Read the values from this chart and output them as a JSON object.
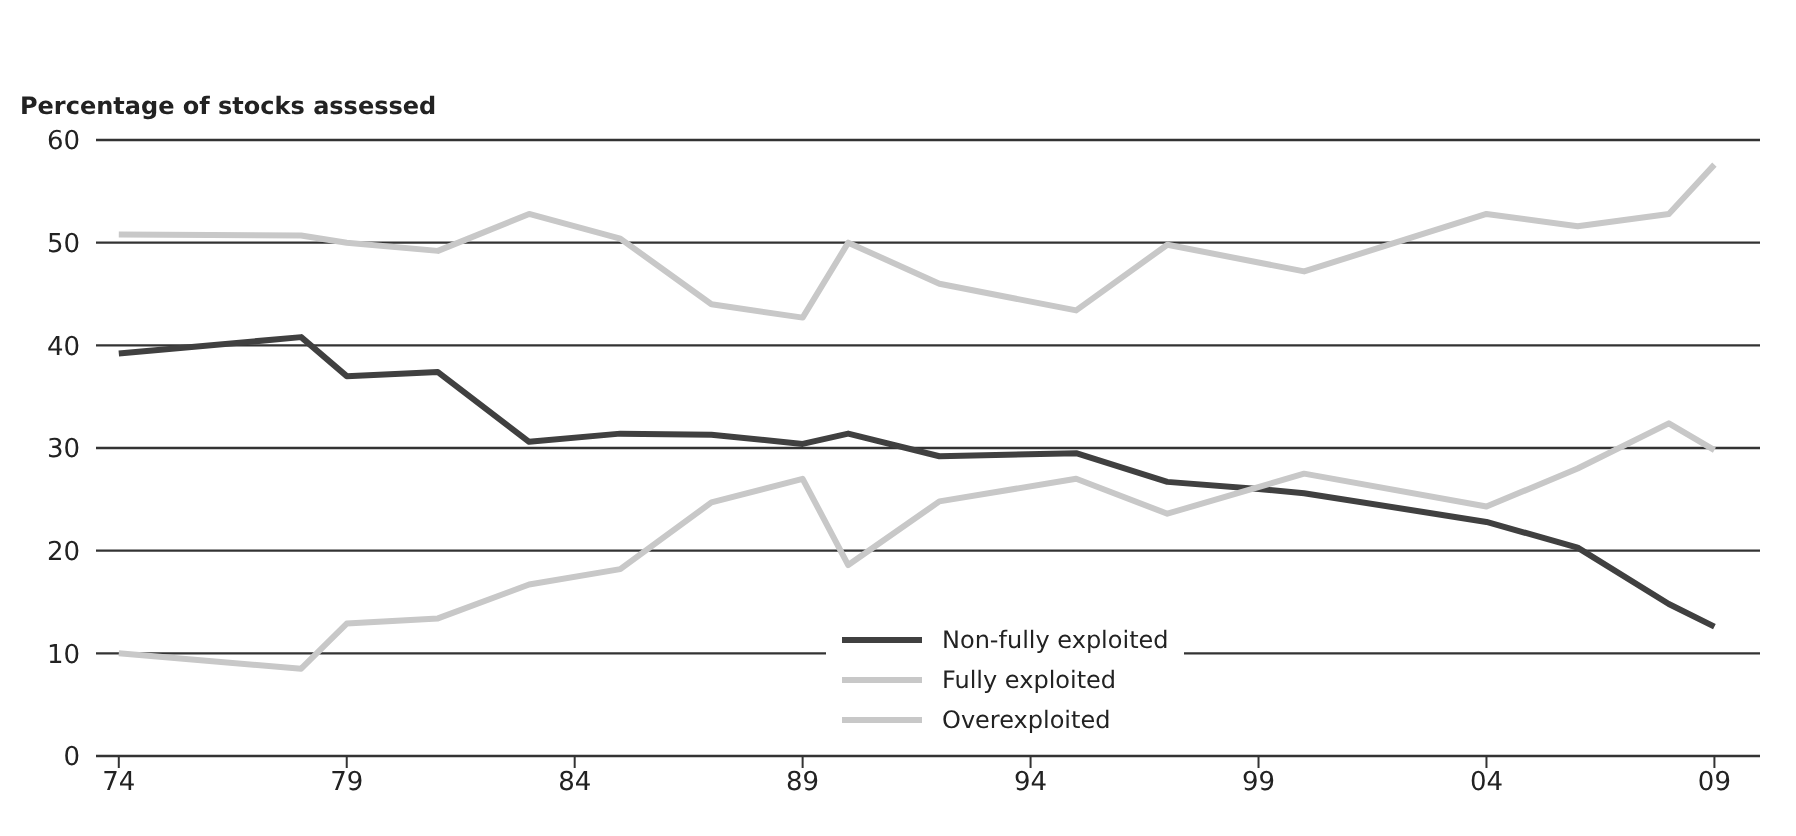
{
  "chart_data": {
    "type": "line",
    "ylabel": "Percentage of stocks assessed",
    "xlim": [
      1973.5,
      2010
    ],
    "xticks": [
      {
        "value": 1974,
        "label": "74"
      },
      {
        "value": 1979,
        "label": "79"
      },
      {
        "value": 1984,
        "label": "84"
      },
      {
        "value": 1989,
        "label": "89"
      },
      {
        "value": 1994,
        "label": "94"
      },
      {
        "value": 1999,
        "label": "99"
      },
      {
        "value": 2004,
        "label": "04"
      },
      {
        "value": 2009,
        "label": "09"
      }
    ],
    "ylim": [
      0,
      60
    ],
    "yticks": [
      0,
      10,
      20,
      30,
      40,
      50,
      60
    ],
    "grid": "y",
    "legend": "bottom",
    "marker": "none",
    "line_style": "solid",
    "series": [
      {
        "name": "Non-fully exploited",
        "color": "#404040",
        "x": [
          1974,
          1978,
          1979,
          1981,
          1983,
          1985,
          1987,
          1989,
          1990,
          1992,
          1995,
          1997,
          1999,
          2000,
          2004,
          2006,
          2008,
          2009
        ],
        "values": [
          39.2,
          40.8,
          37,
          37.4,
          30.6,
          31.4,
          31.3,
          30.4,
          31.4,
          29.2,
          29.5,
          26.7,
          26,
          25.6,
          22.8,
          20.3,
          14.8,
          12.6
        ]
      },
      {
        "name": "Fully exploited",
        "color": "#c8c8c8",
        "x": [
          1974,
          1978,
          1979,
          1981,
          1983,
          1985,
          1987,
          1989,
          1990,
          1992,
          1995,
          1997,
          2000,
          2002,
          2004,
          2006,
          2008,
          2009
        ],
        "values": [
          50.8,
          50.7,
          50,
          49.2,
          52.8,
          50.4,
          44,
          42.7,
          50,
          46,
          43.4,
          49.8,
          47.2,
          50,
          52.8,
          51.6,
          52.8,
          57.6
        ]
      },
      {
        "name": "Overexploited",
        "color": "#c8c8c8",
        "x": [
          1974,
          1978,
          1979,
          1981,
          1983,
          1985,
          1987,
          1989,
          1990,
          1992,
          1995,
          1997,
          2000,
          2004,
          2006,
          2008,
          2009
        ],
        "values": [
          10,
          8.5,
          12.9,
          13.4,
          16.7,
          18.2,
          24.7,
          27,
          18.6,
          24.8,
          27,
          23.6,
          27.5,
          24.3,
          28,
          32.4,
          29.8
        ]
      }
    ]
  }
}
